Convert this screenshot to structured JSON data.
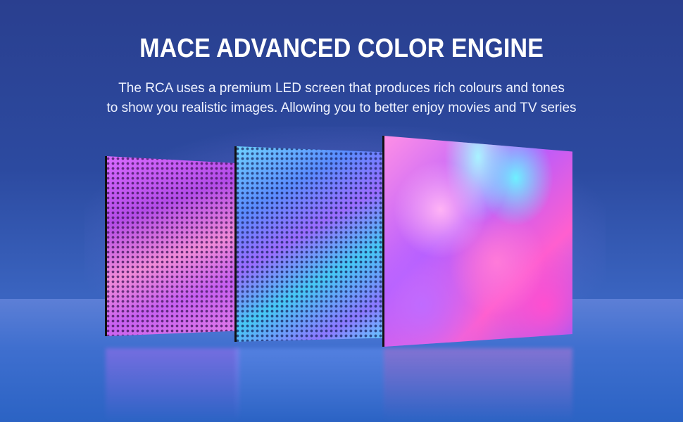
{
  "heading": {
    "title": "MACE ADVANCED COLOR ENGINE",
    "description_line1": "The RCA uses a premium LED screen that produces rich colours and tones",
    "description_line2": "to show you realistic images. Allowing you to better enjoy movies and TV series"
  },
  "colors": {
    "background": "#2c4aa0",
    "text": "#ffffff",
    "accent_pink": "#ff5fcf",
    "accent_cyan": "#6ef0ff"
  },
  "illustration": {
    "panels": [
      "led-dot-layer-pink",
      "led-dot-layer-blue",
      "full-color-screen"
    ]
  }
}
